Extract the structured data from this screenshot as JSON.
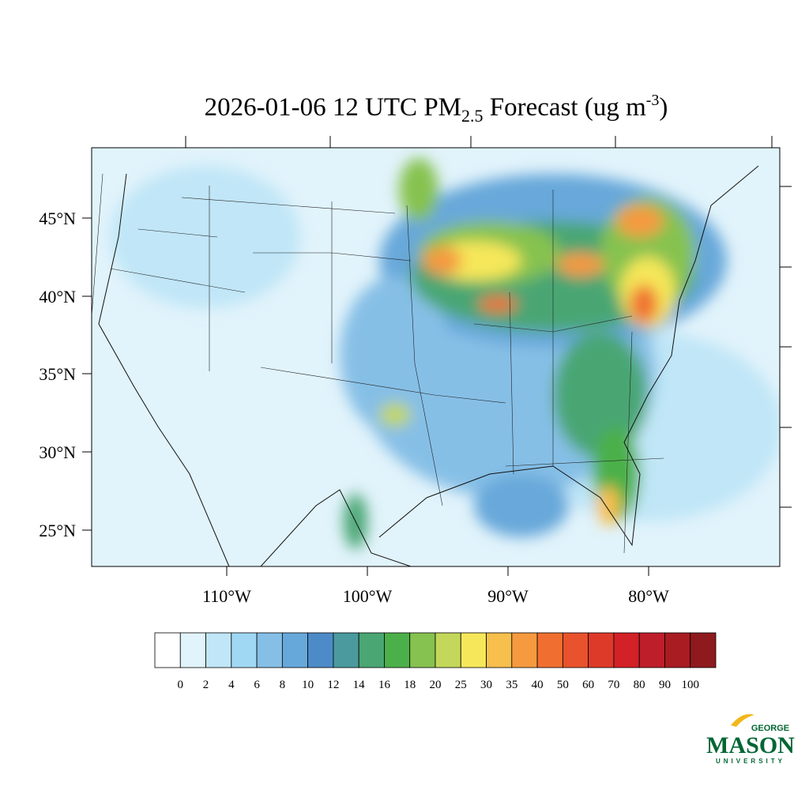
{
  "title": {
    "main": "2026-01-06 12 UTC PM",
    "subscript": "2.5",
    "middle": " Forecast (ug m",
    "superscript": "-3",
    "end": ")"
  },
  "map": {
    "lat_labels": [
      "45°N",
      "40°N",
      "35°N",
      "30°N",
      "25°N"
    ],
    "lon_labels": [
      "110°W",
      "100°W",
      "90°W",
      "80°W"
    ]
  },
  "colorbar": {
    "levels": [
      0,
      2,
      4,
      6,
      8,
      10,
      12,
      14,
      16,
      18,
      20,
      25,
      30,
      35,
      40,
      50,
      60,
      70,
      80,
      90,
      100
    ],
    "colors": [
      "#ffffff",
      "#e1f3fb",
      "#c0e6f7",
      "#a0d8f3",
      "#86bfe6",
      "#67a8da",
      "#4d8bc8",
      "#4a9a9e",
      "#4aa673",
      "#4cb04a",
      "#86c24f",
      "#c3d75a",
      "#f6e75a",
      "#f7bf4c",
      "#f59a3f",
      "#f06f30",
      "#e8522c",
      "#de3a2a",
      "#d22127",
      "#be1e2a",
      "#a81c22",
      "#8e1a1e"
    ]
  },
  "logo": {
    "top": "GEORGE",
    "main": "MASON",
    "bottom": "UNIVERSITY"
  }
}
